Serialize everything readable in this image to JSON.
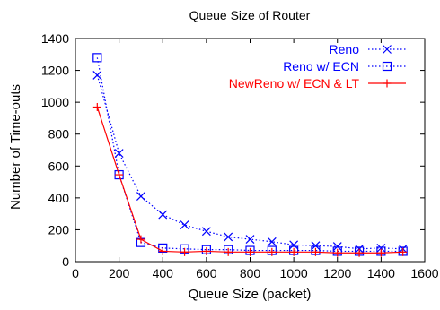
{
  "chart_data": {
    "type": "line",
    "title": "Queue Size of Router",
    "xlabel": "Queue Size (packet)",
    "ylabel": "Number of Time-outs",
    "xlim": [
      0,
      1600
    ],
    "ylim": [
      0,
      1400
    ],
    "x_ticks": [
      "0",
      "200",
      "400",
      "600",
      "800",
      "1000",
      "1200",
      "1400",
      "1600"
    ],
    "y_ticks": [
      "0",
      "200",
      "400",
      "600",
      "800",
      "1000",
      "1200",
      "1400"
    ],
    "grid": false,
    "legend_position": "top-right",
    "x": [
      100,
      200,
      300,
      400,
      500,
      600,
      700,
      800,
      900,
      1000,
      1100,
      1200,
      1300,
      1400,
      1500
    ],
    "series": [
      {
        "name": "Reno",
        "color": "#0000ff",
        "line_style": "dotted",
        "marker": "x",
        "values": [
          1170,
          680,
          410,
          295,
          230,
          190,
          155,
          140,
          125,
          105,
          100,
          95,
          80,
          85,
          80
        ]
      },
      {
        "name": "Reno w/ ECN",
        "color": "#0000ff",
        "line_style": "dotted",
        "marker": "square",
        "values": [
          1280,
          545,
          120,
          85,
          80,
          75,
          75,
          70,
          70,
          70,
          70,
          65,
          65,
          65,
          65
        ]
      },
      {
        "name": "NewReno w/ ECN & LT",
        "color": "#ff0000",
        "line_style": "solid",
        "marker": "plus",
        "values": [
          970,
          545,
          140,
          65,
          60,
          65,
          60,
          60,
          60,
          60,
          60,
          55,
          55,
          55,
          60
        ]
      }
    ]
  }
}
